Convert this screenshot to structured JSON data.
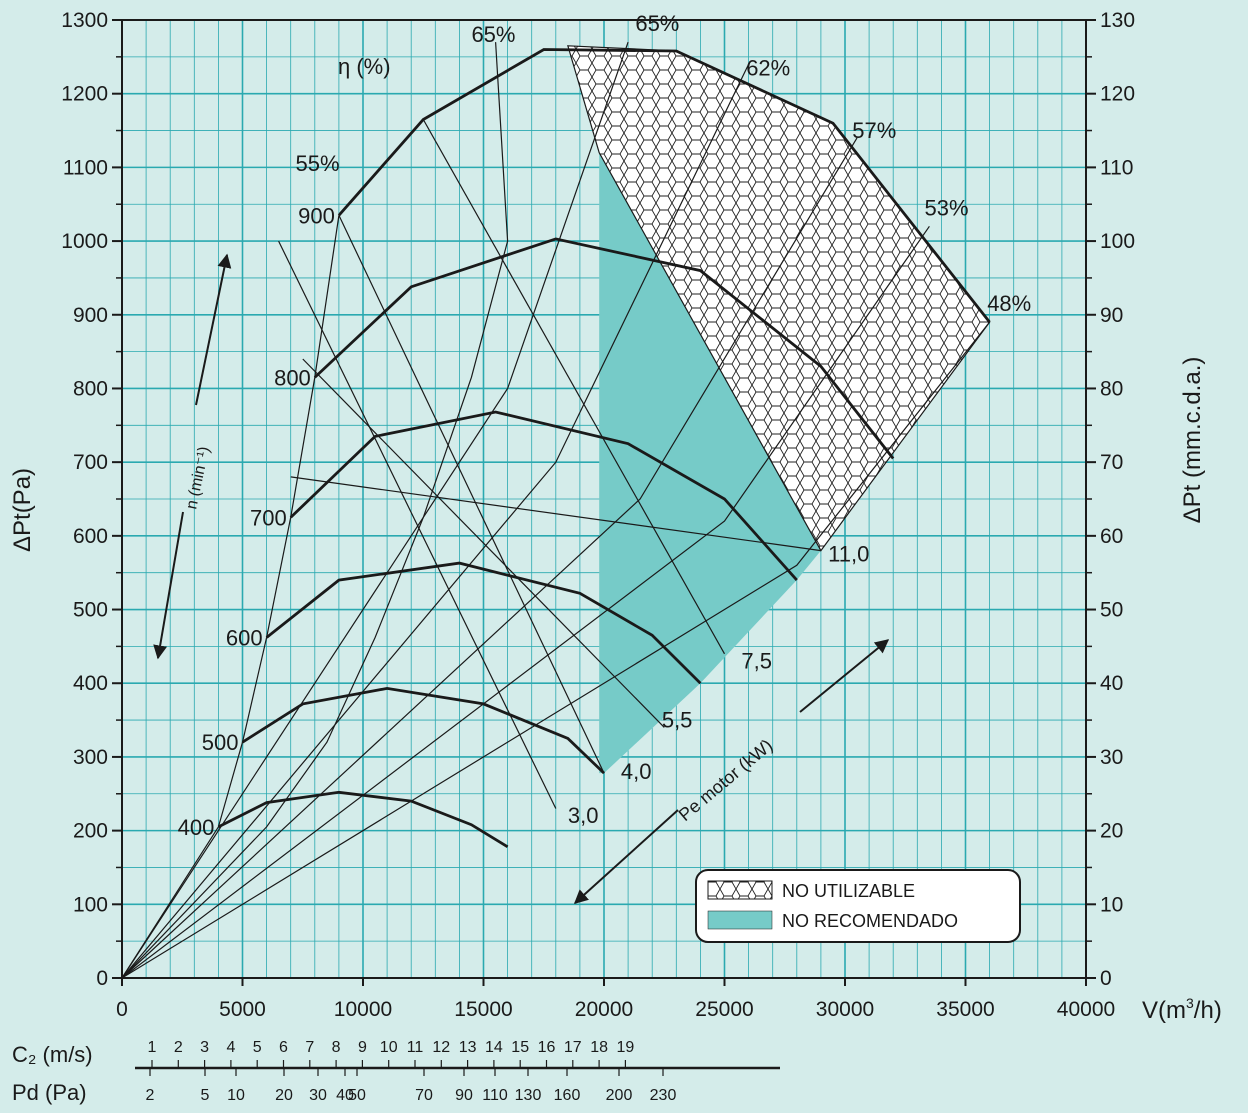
{
  "chart_data": {
    "type": "line",
    "xlabel": "V(m³/h)",
    "xlabel_base": "V(m",
    "xlabel_sup": "3",
    "xlabel_end": "/h)",
    "ylabel": "ΔPt(Pa)",
    "ylabel_right": "ΔPt (mm.c.d.a.)",
    "xlim": [
      0,
      40000
    ],
    "ylim": [
      0,
      1300
    ],
    "ylim_right": [
      0,
      130
    ],
    "grid": true,
    "x_ticks": [
      "0",
      "5000",
      "10000",
      "15000",
      "20000",
      "25000",
      "30000",
      "35000",
      "40000"
    ],
    "y_ticks": [
      "0",
      "100",
      "200",
      "300",
      "400",
      "500",
      "600",
      "700",
      "800",
      "900",
      "1000",
      "1100",
      "1200",
      "1300"
    ],
    "y_right_ticks": [
      "0",
      "10",
      "20",
      "30",
      "40",
      "50",
      "60",
      "70",
      "80",
      "90",
      "100",
      "110",
      "120",
      "130"
    ],
    "efficiency_title": "η (%)",
    "speed_annotation": "n (min⁻¹)",
    "power_annotation": "Pe motor (kW)",
    "speed_curves": [
      {
        "label": "400",
        "points": [
          [
            4000,
            205
          ],
          [
            6000,
            238
          ],
          [
            9000,
            252
          ],
          [
            12000,
            240
          ],
          [
            14500,
            208
          ],
          [
            16000,
            178
          ]
        ]
      },
      {
        "label": "500",
        "points": [
          [
            5000,
            320
          ],
          [
            7500,
            372
          ],
          [
            11000,
            393
          ],
          [
            15000,
            372
          ],
          [
            18500,
            325
          ],
          [
            20000,
            278
          ]
        ]
      },
      {
        "label": "600",
        "points": [
          [
            6000,
            462
          ],
          [
            9000,
            540
          ],
          [
            14000,
            563
          ],
          [
            19000,
            522
          ],
          [
            22000,
            465
          ],
          [
            24000,
            400
          ]
        ]
      },
      {
        "label": "700",
        "points": [
          [
            7000,
            625
          ],
          [
            10500,
            735
          ],
          [
            15500,
            768
          ],
          [
            21000,
            725
          ],
          [
            25000,
            650
          ],
          [
            28000,
            540
          ]
        ]
      },
      {
        "label": "800",
        "points": [
          [
            8000,
            815
          ],
          [
            12000,
            938
          ],
          [
            18000,
            1003
          ],
          [
            24000,
            960
          ],
          [
            29000,
            830
          ],
          [
            32000,
            705
          ]
        ]
      },
      {
        "label": "900",
        "points": [
          [
            9000,
            1035
          ],
          [
            12500,
            1165
          ],
          [
            17500,
            1260
          ],
          [
            23000,
            1258
          ],
          [
            29500,
            1160
          ],
          [
            36000,
            890
          ]
        ]
      }
    ],
    "efficiency_lines": [
      {
        "label": "55%",
        "points": [
          [
            0,
            0
          ],
          [
            4000,
            205
          ],
          [
            5000,
            320
          ],
          [
            6000,
            462
          ],
          [
            7000,
            625
          ],
          [
            8000,
            815
          ],
          [
            9000,
            1035
          ]
        ]
      },
      {
        "label": "65%",
        "points": [
          [
            0,
            0
          ],
          [
            6000,
            205
          ],
          [
            8500,
            320
          ],
          [
            10500,
            462
          ],
          [
            12500,
            625
          ],
          [
            14500,
            815
          ],
          [
            16000,
            1000
          ],
          [
            15500,
            1270
          ]
        ]
      },
      {
        "label": "65%",
        "points": [
          [
            0,
            0
          ],
          [
            16000,
            800
          ],
          [
            21000,
            1270
          ]
        ]
      },
      {
        "label": "62%",
        "points": [
          [
            0,
            0
          ],
          [
            18000,
            700
          ],
          [
            26000,
            1240
          ]
        ]
      },
      {
        "label": "57%",
        "points": [
          [
            0,
            0
          ],
          [
            21500,
            650
          ],
          [
            30500,
            1140
          ]
        ]
      },
      {
        "label": "53%",
        "points": [
          [
            0,
            0
          ],
          [
            25000,
            620
          ],
          [
            33500,
            1020
          ]
        ]
      },
      {
        "label": "48%",
        "points": [
          [
            0,
            0
          ],
          [
            28000,
            560
          ],
          [
            36000,
            890
          ]
        ]
      }
    ],
    "power_lines": [
      {
        "label": "3,0",
        "points": [
          [
            6500,
            1000
          ],
          [
            18000,
            230
          ]
        ]
      },
      {
        "label": "4,0",
        "points": [
          [
            9000,
            1035
          ],
          [
            20000,
            278
          ]
        ]
      },
      {
        "label": "5,5",
        "points": [
          [
            7500,
            840
          ],
          [
            22500,
            340
          ]
        ]
      },
      {
        "label": "7,5",
        "points": [
          [
            12500,
            1165
          ],
          [
            25000,
            440
          ]
        ]
      },
      {
        "label": "11,0",
        "points": [
          [
            7000,
            680
          ],
          [
            29000,
            580
          ]
        ]
      }
    ],
    "regions": [
      {
        "label": "NO UTILIZABLE",
        "fill": "hexagon-pattern"
      },
      {
        "label": "NO RECOMENDADO",
        "fill": "#76cbc8"
      }
    ],
    "bottom_scales": [
      {
        "title": "C₂ (m/s)",
        "labels": [
          "1",
          "2",
          "3",
          "4",
          "5",
          "6",
          "7",
          "8",
          "9",
          "10",
          "11",
          "12",
          "13",
          "14",
          "15",
          "16",
          "17",
          "18",
          "19"
        ]
      },
      {
        "title": "Pd (Pa)",
        "labels": [
          "2",
          "5",
          "10",
          "20",
          "30",
          "40",
          "50",
          "70",
          "90",
          "110",
          "130",
          "160",
          "200",
          "230"
        ]
      }
    ],
    "colors": {
      "background": "#d4ecea",
      "grid": "#2aa9b0",
      "recommended_fill": "#76cbc8",
      "ink": "#1a1a1a"
    }
  }
}
